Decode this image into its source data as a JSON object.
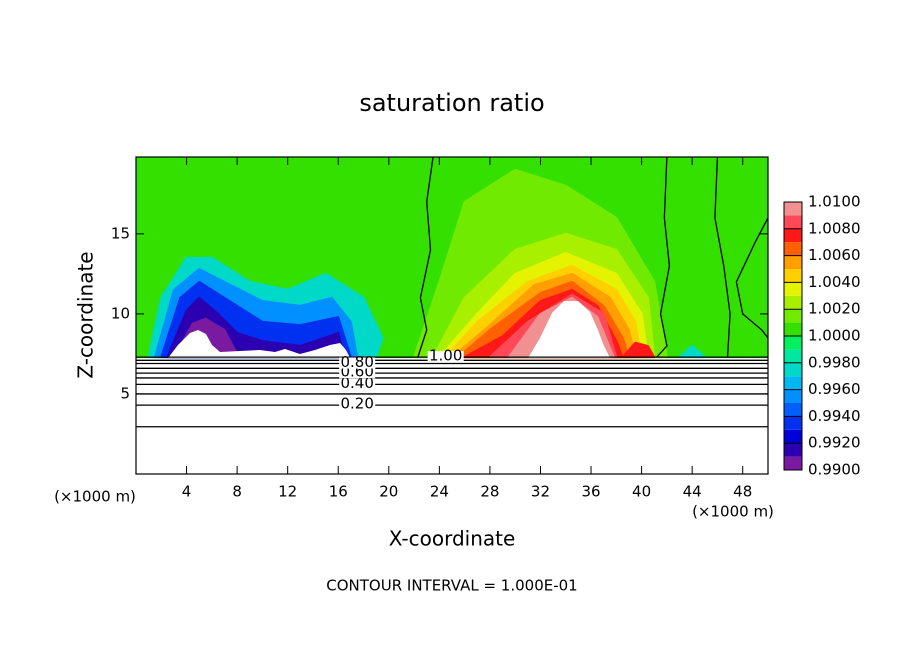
{
  "chart_data": {
    "type": "contour",
    "title": "saturation ratio",
    "xlabel": "X-coordinate",
    "ylabel": "Z-coordinate",
    "x_unit_label": "(×1000 m)",
    "y_unit_label": "(×1000 m)",
    "footer": "CONTOUR INTERVAL = 1.000E-01",
    "xlim": [
      0,
      50
    ],
    "ylim": [
      0,
      19.8
    ],
    "xticks": [
      4,
      8,
      12,
      16,
      20,
      24,
      28,
      32,
      36,
      40,
      44,
      48
    ],
    "yticks": [
      5,
      10,
      15
    ],
    "colorbar": {
      "levels": [
        0.99,
        0.991,
        0.992,
        0.993,
        0.994,
        0.995,
        0.996,
        0.997,
        0.998,
        0.999,
        1.0,
        1.001,
        1.002,
        1.003,
        1.004,
        1.005,
        1.006,
        1.007,
        1.008,
        1.009,
        1.01
      ],
      "colors": [
        "#7a1aa0",
        "#2a00b0",
        "#0000d8",
        "#0030f0",
        "#0060ff",
        "#0090ff",
        "#00b8f0",
        "#00d8c8",
        "#00e8a0",
        "#00f060",
        "#33e000",
        "#70ea00",
        "#a8f000",
        "#e4f400",
        "#ffd000",
        "#ffa000",
        "#ff6000",
        "#ff1818",
        "#ff4858",
        "#f09090"
      ],
      "ticks": [
        {
          "value": 0.99,
          "label": "0.9900"
        },
        {
          "value": 0.992,
          "label": "0.9920"
        },
        {
          "value": 0.994,
          "label": "0.9940"
        },
        {
          "value": 0.996,
          "label": "0.9960"
        },
        {
          "value": 0.998,
          "label": "0.9980"
        },
        {
          "value": 1.0,
          "label": "1.0000"
        },
        {
          "value": 1.002,
          "label": "1.0020"
        },
        {
          "value": 1.004,
          "label": "1.0040"
        },
        {
          "value": 1.006,
          "label": "1.0060"
        },
        {
          "value": 1.008,
          "label": "1.0080"
        },
        {
          "value": 1.01,
          "label": "1.0100"
        }
      ]
    },
    "regions": [
      {
        "value": 1.0,
        "x": [
          0,
          50,
          50,
          0
        ],
        "z": [
          7.3,
          7.3,
          19.8,
          19.8
        ]
      },
      {
        "value": 0.997,
        "x": [
          1,
          2,
          4,
          6,
          9,
          12,
          15,
          18,
          19.5,
          19
        ],
        "z": [
          7.3,
          11,
          13.5,
          13.5,
          12,
          11.5,
          12.5,
          11,
          8.5,
          7.3
        ]
      },
      {
        "value": 0.995,
        "x": [
          1.5,
          3,
          5,
          7,
          10,
          13,
          15.5,
          17,
          17.5
        ],
        "z": [
          7.3,
          11.5,
          12.8,
          12,
          10.8,
          10.5,
          11,
          9.5,
          7.3
        ]
      },
      {
        "value": 0.993,
        "x": [
          2,
          3.5,
          5,
          7,
          10,
          13,
          16,
          17
        ],
        "z": [
          7.3,
          11,
          12,
          11,
          9.5,
          9.3,
          9.8,
          7.3
        ]
      },
      {
        "value": 0.991,
        "x": [
          2.5,
          4,
          5,
          6.5,
          8,
          10,
          13,
          16,
          16.5
        ],
        "z": [
          7.3,
          10.2,
          11,
          10,
          8.8,
          8.3,
          8,
          8.8,
          7.3
        ]
      },
      {
        "value": 0.99,
        "x": [
          3,
          4.5,
          5.5,
          7,
          8
        ],
        "z": [
          7.3,
          9.4,
          9.7,
          9,
          7.5
        ]
      },
      {
        "value": 0.997,
        "x": [
          43,
          44,
          45
        ],
        "z": [
          7.3,
          8,
          7.3
        ]
      },
      {
        "value": 1.001,
        "x": [
          22,
          24,
          26,
          30,
          34,
          38,
          41,
          42
        ],
        "z": [
          7.3,
          12,
          17,
          19,
          18,
          16,
          12,
          7.3
        ]
      },
      {
        "value": 1.002,
        "x": [
          23.5,
          26,
          30,
          34,
          38,
          40.5,
          41
        ],
        "z": [
          7.3,
          11,
          14,
          15,
          14,
          11,
          7.3
        ]
      },
      {
        "value": 1.003,
        "x": [
          24,
          27,
          30,
          34,
          38,
          40,
          40.5
        ],
        "z": [
          7.3,
          10,
          12.5,
          13.8,
          12.5,
          10,
          7.3
        ]
      },
      {
        "value": 1.004,
        "x": [
          24.5,
          27,
          31,
          34.5,
          38,
          39.5,
          40
        ],
        "z": [
          7.3,
          9.5,
          12,
          13,
          11.5,
          9.5,
          7.3
        ]
      },
      {
        "value": 1.005,
        "x": [
          25,
          28,
          31.5,
          34.5,
          37.5,
          39,
          39.5
        ],
        "z": [
          7.3,
          9.3,
          11.8,
          12.5,
          11,
          9,
          7.3
        ]
      },
      {
        "value": 1.006,
        "x": [
          25.5,
          28,
          32,
          34.5,
          37,
          38.5,
          39
        ],
        "z": [
          7.3,
          9,
          11.3,
          12,
          10.5,
          8.5,
          7.3
        ]
      },
      {
        "value": 1.007,
        "x": [
          26,
          29,
          32,
          34.5,
          36.5,
          38,
          38.5
        ],
        "z": [
          7.3,
          8.6,
          10.8,
          11.5,
          10.5,
          8.3,
          7.3
        ]
      },
      {
        "value": 1.007,
        "x": [
          38.5,
          39.5,
          40.5,
          41
        ],
        "z": [
          7.3,
          8.2,
          8,
          7.3
        ]
      },
      {
        "value": 1.008,
        "x": [
          28,
          31,
          34.5,
          37,
          38
        ],
        "z": [
          7.3,
          9.5,
          11.2,
          10,
          7.3
        ]
      },
      {
        "value": 1.009,
        "x": [
          29.5,
          32,
          34.5,
          36.5,
          37.8
        ],
        "z": [
          7.3,
          10,
          11,
          9.8,
          7.3
        ]
      }
    ],
    "contours": [
      {
        "value": 0.1,
        "x": [
          0,
          17.5,
          50
        ],
        "z": [
          2.95,
          2.95,
          2.95
        ]
      },
      {
        "value": 0.2,
        "label": "0.20",
        "x": [
          0,
          17.5,
          50
        ],
        "z": [
          4.3,
          4.3,
          4.3
        ]
      },
      {
        "value": 0.3,
        "x": [
          0,
          17.5,
          50
        ],
        "z": [
          5.0,
          5.0,
          5.0
        ]
      },
      {
        "value": 0.4,
        "label": "0.40",
        "x": [
          0,
          17.5,
          50
        ],
        "z": [
          5.6,
          5.6,
          5.6
        ]
      },
      {
        "value": 0.5,
        "x": [
          0,
          17.5,
          50
        ],
        "z": [
          6.0,
          6.0,
          6.0
        ]
      },
      {
        "value": 0.6,
        "label": "0.60",
        "x": [
          0,
          17.5,
          50
        ],
        "z": [
          6.3,
          6.3,
          6.3
        ]
      },
      {
        "value": 0.7,
        "x": [
          0,
          17.5,
          50
        ],
        "z": [
          6.6,
          6.6,
          6.6
        ]
      },
      {
        "value": 0.8,
        "label": "0.80",
        "x": [
          0,
          17.5,
          50
        ],
        "z": [
          6.9,
          6.9,
          6.9
        ]
      },
      {
        "value": 0.9,
        "x": [
          0,
          17.5,
          50
        ],
        "z": [
          7.1,
          7.1,
          7.1
        ]
      },
      {
        "value": 1.0,
        "label": "1.00",
        "x": [
          0,
          24.5,
          50
        ],
        "z": [
          7.3,
          7.3,
          7.3
        ]
      },
      {
        "value": 1.0,
        "x": [
          23.5,
          23,
          23.3,
          22.5,
          23,
          22.3
        ],
        "z": [
          19.8,
          17,
          14,
          11,
          9,
          7.3
        ]
      },
      {
        "value": 1.0,
        "x": [
          42,
          41.8,
          42.2,
          41.5,
          42,
          41.2
        ],
        "z": [
          19.8,
          16,
          13,
          10,
          8,
          7.3
        ]
      },
      {
        "value": 1.0,
        "x": [
          46,
          45.8,
          46.5,
          47,
          46.8
        ],
        "z": [
          19.8,
          16,
          13,
          10,
          7.3
        ]
      },
      {
        "value": 1.0,
        "x": [
          50,
          49,
          47.5,
          48,
          49.5,
          50
        ],
        "z": [
          16,
          14.5,
          12,
          10,
          9,
          8.5
        ]
      }
    ]
  }
}
